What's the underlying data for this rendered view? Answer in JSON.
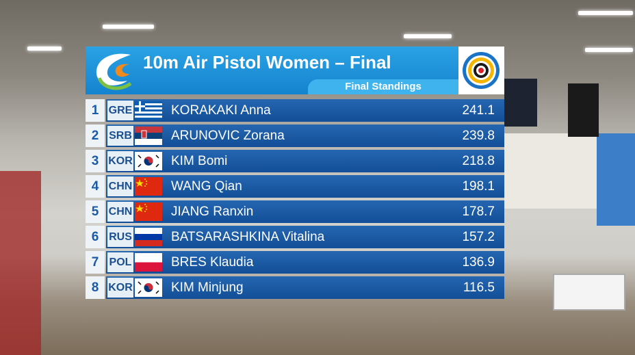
{
  "header": {
    "title": "10m Air Pistol Women – Final",
    "subtitle": "Final Standings"
  },
  "table": {
    "rows": [
      {
        "rank": "1",
        "code": "GRE",
        "name": "KORAKAKI Anna",
        "score": "241.1"
      },
      {
        "rank": "2",
        "code": "SRB",
        "name": "ARUNOVIC Zorana",
        "score": "239.8"
      },
      {
        "rank": "3",
        "code": "KOR",
        "name": "KIM Bomi",
        "score": "218.8"
      },
      {
        "rank": "4",
        "code": "CHN",
        "name": "WANG Qian",
        "score": "198.1"
      },
      {
        "rank": "5",
        "code": "CHN",
        "name": "JIANG Ranxin",
        "score": "178.7"
      },
      {
        "rank": "6",
        "code": "RUS",
        "name": "BATSARASHKINA Vitalina",
        "score": "157.2"
      },
      {
        "rank": "7",
        "code": "POL",
        "name": "BRES Klaudia",
        "score": "136.9"
      },
      {
        "rank": "8",
        "code": "KOR",
        "name": "KIM Minjung",
        "score": "116.5"
      }
    ]
  }
}
